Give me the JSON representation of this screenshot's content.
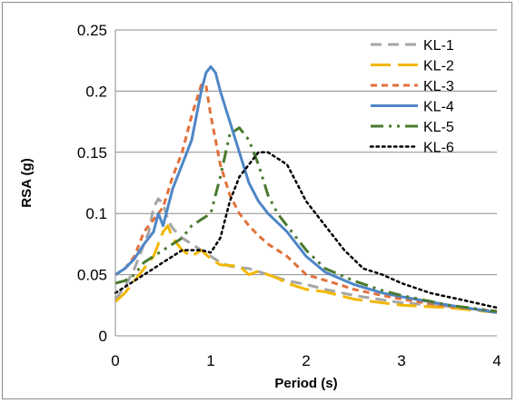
{
  "chart_data": {
    "type": "line",
    "title": "",
    "xlabel": "Period (s)",
    "ylabel": "RSA (g)",
    "xlim": [
      0,
      4
    ],
    "ylim": [
      0,
      0.25
    ],
    "x_ticks": [
      "0",
      "1",
      "2",
      "3",
      "4"
    ],
    "y_ticks": [
      "0",
      "0.05",
      "0.1",
      "0.15",
      "0.2",
      "0.25"
    ],
    "grid": "horizontal",
    "legend_position": "top-right",
    "series": [
      {
        "name": "KL-1",
        "color": "#a6a6a6",
        "style": "dash",
        "points": [
          [
            0,
            0.03
          ],
          [
            0.1,
            0.04
          ],
          [
            0.2,
            0.055
          ],
          [
            0.3,
            0.075
          ],
          [
            0.35,
            0.085
          ],
          [
            0.4,
            0.105
          ],
          [
            0.45,
            0.112
          ],
          [
            0.5,
            0.108
          ],
          [
            0.55,
            0.095
          ],
          [
            0.6,
            0.088
          ],
          [
            0.7,
            0.08
          ],
          [
            0.8,
            0.075
          ],
          [
            0.9,
            0.07
          ],
          [
            1.0,
            0.065
          ],
          [
            1.1,
            0.06
          ],
          [
            1.2,
            0.057
          ],
          [
            1.4,
            0.055
          ],
          [
            1.6,
            0.05
          ],
          [
            1.8,
            0.045
          ],
          [
            2.0,
            0.042
          ],
          [
            2.2,
            0.038
          ],
          [
            2.5,
            0.033
          ],
          [
            3.0,
            0.027
          ],
          [
            3.5,
            0.024
          ],
          [
            4.0,
            0.02
          ]
        ]
      },
      {
        "name": "KL-2",
        "color": "#f2b705",
        "style": "longdash",
        "points": [
          [
            0,
            0.028
          ],
          [
            0.1,
            0.035
          ],
          [
            0.2,
            0.045
          ],
          [
            0.3,
            0.055
          ],
          [
            0.4,
            0.065
          ],
          [
            0.5,
            0.085
          ],
          [
            0.55,
            0.09
          ],
          [
            0.6,
            0.08
          ],
          [
            0.7,
            0.07
          ],
          [
            0.8,
            0.065
          ],
          [
            0.9,
            0.07
          ],
          [
            1.0,
            0.063
          ],
          [
            1.1,
            0.058
          ],
          [
            1.3,
            0.057
          ],
          [
            1.4,
            0.05
          ],
          [
            1.5,
            0.053
          ],
          [
            1.7,
            0.047
          ],
          [
            1.8,
            0.043
          ],
          [
            2.0,
            0.038
          ],
          [
            2.2,
            0.036
          ],
          [
            2.5,
            0.03
          ],
          [
            3.0,
            0.025
          ],
          [
            3.5,
            0.023
          ],
          [
            4.0,
            0.019
          ]
        ]
      },
      {
        "name": "KL-3",
        "color": "#e2703a",
        "style": "shortdash",
        "points": [
          [
            0,
            0.05
          ],
          [
            0.1,
            0.055
          ],
          [
            0.2,
            0.065
          ],
          [
            0.3,
            0.085
          ],
          [
            0.4,
            0.095
          ],
          [
            0.5,
            0.105
          ],
          [
            0.6,
            0.13
          ],
          [
            0.7,
            0.15
          ],
          [
            0.8,
            0.18
          ],
          [
            0.9,
            0.205
          ],
          [
            0.95,
            0.205
          ],
          [
            1.0,
            0.18
          ],
          [
            1.05,
            0.16
          ],
          [
            1.1,
            0.14
          ],
          [
            1.2,
            0.115
          ],
          [
            1.3,
            0.1
          ],
          [
            1.4,
            0.09
          ],
          [
            1.5,
            0.082
          ],
          [
            1.6,
            0.075
          ],
          [
            1.8,
            0.065
          ],
          [
            2.0,
            0.05
          ],
          [
            2.3,
            0.043
          ],
          [
            2.5,
            0.038
          ],
          [
            2.8,
            0.033
          ],
          [
            3.0,
            0.03
          ],
          [
            3.5,
            0.024
          ],
          [
            4.0,
            0.02
          ]
        ]
      },
      {
        "name": "KL-4",
        "color": "#4f86c6",
        "style": "solid",
        "points": [
          [
            0,
            0.05
          ],
          [
            0.1,
            0.055
          ],
          [
            0.2,
            0.063
          ],
          [
            0.3,
            0.075
          ],
          [
            0.4,
            0.085
          ],
          [
            0.45,
            0.1
          ],
          [
            0.5,
            0.09
          ],
          [
            0.6,
            0.12
          ],
          [
            0.7,
            0.14
          ],
          [
            0.8,
            0.16
          ],
          [
            0.9,
            0.2
          ],
          [
            0.95,
            0.215
          ],
          [
            1.0,
            0.22
          ],
          [
            1.05,
            0.215
          ],
          [
            1.1,
            0.2
          ],
          [
            1.2,
            0.175
          ],
          [
            1.3,
            0.15
          ],
          [
            1.4,
            0.125
          ],
          [
            1.5,
            0.11
          ],
          [
            1.6,
            0.1
          ],
          [
            1.8,
            0.085
          ],
          [
            2.0,
            0.065
          ],
          [
            2.2,
            0.052
          ],
          [
            2.5,
            0.042
          ],
          [
            2.8,
            0.035
          ],
          [
            3.0,
            0.032
          ],
          [
            3.5,
            0.025
          ],
          [
            4.0,
            0.019
          ]
        ]
      },
      {
        "name": "KL-5",
        "color": "#4a7a2e",
        "style": "dashdotdot",
        "points": [
          [
            0,
            0.043
          ],
          [
            0.1,
            0.045
          ],
          [
            0.2,
            0.05
          ],
          [
            0.3,
            0.06
          ],
          [
            0.5,
            0.07
          ],
          [
            0.7,
            0.08
          ],
          [
            0.8,
            0.09
          ],
          [
            0.9,
            0.095
          ],
          [
            1.0,
            0.1
          ],
          [
            1.1,
            0.13
          ],
          [
            1.2,
            0.165
          ],
          [
            1.3,
            0.17
          ],
          [
            1.4,
            0.16
          ],
          [
            1.5,
            0.14
          ],
          [
            1.6,
            0.115
          ],
          [
            1.7,
            0.1
          ],
          [
            1.8,
            0.09
          ],
          [
            2.0,
            0.07
          ],
          [
            2.2,
            0.055
          ],
          [
            2.5,
            0.045
          ],
          [
            2.8,
            0.037
          ],
          [
            3.0,
            0.033
          ],
          [
            3.5,
            0.025
          ],
          [
            4.0,
            0.02
          ]
        ]
      },
      {
        "name": "KL-6",
        "color": "#000000",
        "style": "dot",
        "points": [
          [
            0,
            0.035
          ],
          [
            0.1,
            0.04
          ],
          [
            0.2,
            0.045
          ],
          [
            0.3,
            0.05
          ],
          [
            0.4,
            0.055
          ],
          [
            0.5,
            0.06
          ],
          [
            0.6,
            0.065
          ],
          [
            0.7,
            0.07
          ],
          [
            0.8,
            0.07
          ],
          [
            0.9,
            0.07
          ],
          [
            1.0,
            0.068
          ],
          [
            1.1,
            0.08
          ],
          [
            1.2,
            0.11
          ],
          [
            1.3,
            0.13
          ],
          [
            1.4,
            0.14
          ],
          [
            1.5,
            0.15
          ],
          [
            1.6,
            0.15
          ],
          [
            1.7,
            0.145
          ],
          [
            1.8,
            0.14
          ],
          [
            1.9,
            0.125
          ],
          [
            2.0,
            0.11
          ],
          [
            2.2,
            0.09
          ],
          [
            2.4,
            0.07
          ],
          [
            2.6,
            0.055
          ],
          [
            2.8,
            0.05
          ],
          [
            3.0,
            0.043
          ],
          [
            3.3,
            0.035
          ],
          [
            3.6,
            0.03
          ],
          [
            4.0,
            0.023
          ]
        ]
      }
    ]
  }
}
